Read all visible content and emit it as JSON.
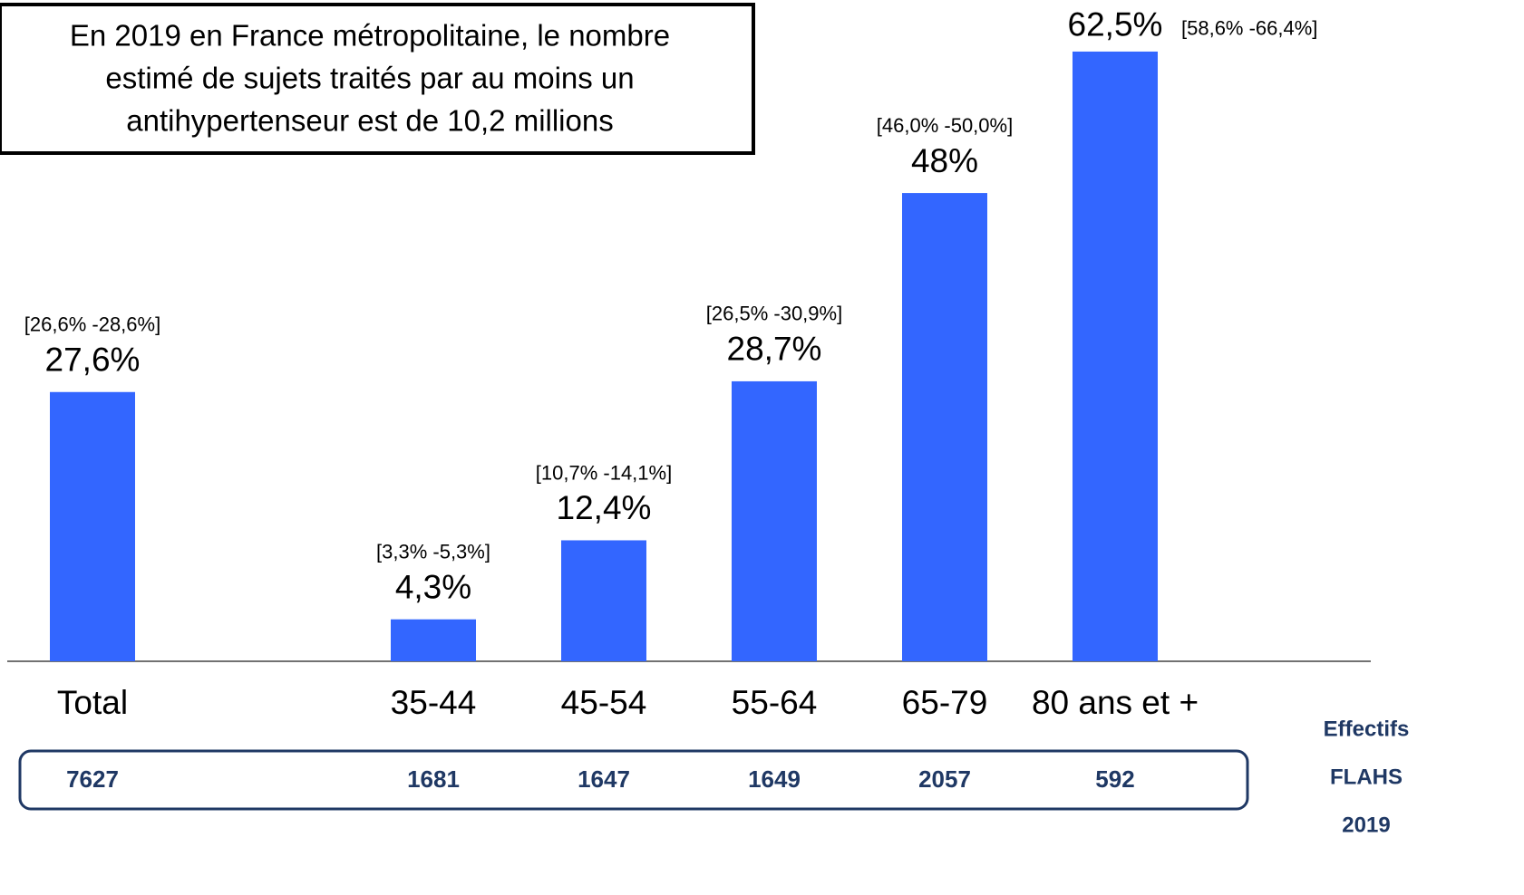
{
  "chart_data": {
    "type": "bar",
    "annotation_lines": [
      "En 2019 en France métropolitaine, le nombre",
      "estimé de sujets traités par au moins un",
      "antihypertenseur est de 10,2 millions"
    ],
    "categories": [
      "Total",
      null,
      "35-44",
      "45-54",
      "55-64",
      "65-79",
      "80 ans et +"
    ],
    "values": [
      27.6,
      null,
      4.3,
      12.4,
      28.7,
      48,
      62.5
    ],
    "value_labels": [
      "27,6%",
      null,
      "4,3%",
      "12,4%",
      "28,7%",
      "48%",
      "62,5%"
    ],
    "interval_labels": [
      "[26,6% -28,6%]",
      null,
      "[3,3% -5,3%]",
      "[10,7% -14,1%]",
      "[26,5% -30,9%]",
      "[46,0% -50,0%]",
      "[58,6% -66,4%]"
    ],
    "sample_sizes": [
      7627,
      null,
      1681,
      1647,
      1649,
      2057,
      592
    ],
    "sample_label_lines": [
      "Effectifs",
      "FLAHS",
      "2019"
    ],
    "color": "#3366ff",
    "ylim": [
      0,
      65
    ]
  }
}
